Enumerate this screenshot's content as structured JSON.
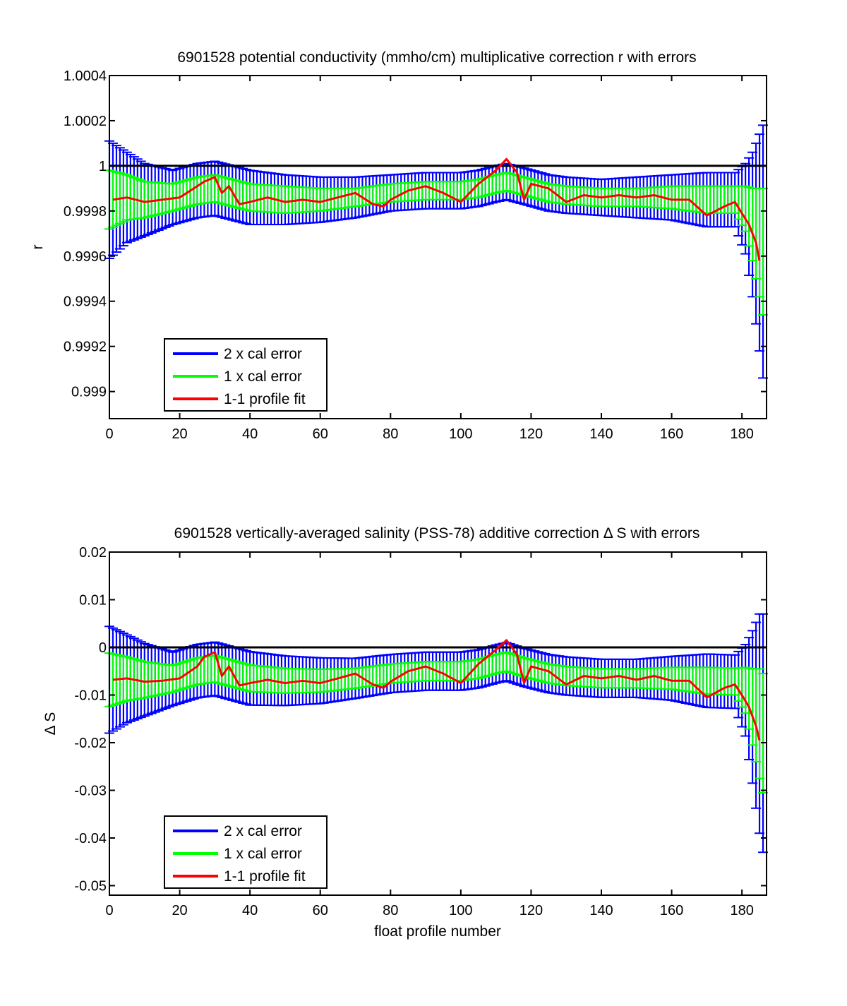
{
  "figure": {
    "xlabel": "float profile number"
  },
  "colors": {
    "two_sigma": "#0000ff",
    "one_sigma": "#00ff00",
    "fit": "#ff0000",
    "reference": "#000000"
  },
  "chart_data": [
    {
      "type": "line",
      "title": "6901528 potential conductivity (mmho/cm) multiplicative correction r with errors",
      "xlabel": "",
      "ylabel": "r",
      "xlim": [
        0,
        187
      ],
      "ylim": [
        0.99888,
        1.0004
      ],
      "xticks": [
        0,
        20,
        40,
        60,
        80,
        100,
        120,
        140,
        160,
        180
      ],
      "xtick_labels": [
        "0",
        "20",
        "40",
        "60",
        "80",
        "100",
        "120",
        "140",
        "160",
        "180"
      ],
      "yticks": [
        0.999,
        0.9992,
        0.9994,
        0.9996,
        0.9998,
        1,
        1.0002,
        1.0004
      ],
      "ytick_labels": [
        "0.999",
        "0.9992",
        "0.9994",
        "0.9996",
        "0.9998",
        "1",
        "1.0002",
        "1.0004"
      ],
      "reference_y": 1,
      "grid": false,
      "legend_position": "bottom-left",
      "legend": [
        "2 x cal error",
        "1 x cal error",
        "1-1 profile fit"
      ],
      "series": [
        {
          "name": "1-1 profile fit",
          "x": [
            1,
            5,
            10,
            15,
            20,
            25,
            27,
            30,
            32,
            34,
            37,
            40,
            45,
            50,
            55,
            60,
            65,
            70,
            75,
            78,
            80,
            85,
            90,
            95,
            100,
            105,
            110,
            113,
            116,
            118,
            120,
            125,
            130,
            135,
            140,
            145,
            150,
            155,
            160,
            165,
            170,
            175,
            178,
            180,
            182,
            184,
            185
          ],
          "values": [
            0.99985,
            0.99986,
            0.99984,
            0.99985,
            0.99986,
            0.99991,
            0.99993,
            0.99995,
            0.99988,
            0.99991,
            0.99983,
            0.99984,
            0.99986,
            0.99984,
            0.99985,
            0.99984,
            0.99986,
            0.99988,
            0.99983,
            0.99982,
            0.99985,
            0.99989,
            0.99991,
            0.99988,
            0.99984,
            0.99992,
            0.99998,
            1.00003,
            0.99997,
            0.99985,
            0.99992,
            0.9999,
            0.99984,
            0.99987,
            0.99986,
            0.99987,
            0.99986,
            0.99987,
            0.99985,
            0.99985,
            0.99978,
            0.99982,
            0.99984,
            0.99979,
            0.99974,
            0.99966,
            0.99958
          ]
        },
        {
          "name": "1 x cal error",
          "x": [
            0,
            5,
            10,
            18,
            25,
            30,
            35,
            40,
            50,
            60,
            70,
            80,
            90,
            100,
            105,
            110,
            113,
            118,
            125,
            130,
            140,
            150,
            160,
            170,
            178,
            181,
            183,
            185,
            186
          ],
          "values": [
            0.99985,
            0.99986,
            0.99985,
            0.99986,
            0.99989,
            0.9999,
            0.99988,
            0.99986,
            0.99985,
            0.99985,
            0.99986,
            0.99988,
            0.99989,
            0.99989,
            0.9999,
            0.99992,
            0.99993,
            0.99991,
            0.99988,
            0.99987,
            0.99986,
            0.99986,
            0.99986,
            0.99985,
            0.99985,
            0.99981,
            0.99974,
            0.99966,
            0.99962
          ],
          "error": [
            0.00013,
            0.0001,
            8e-05,
            6e-05,
            6e-05,
            6e-05,
            6e-05,
            6e-05,
            6e-05,
            5e-05,
            4e-05,
            4e-05,
            4e-05,
            4e-05,
            4e-05,
            4e-05,
            4e-05,
            4e-05,
            4e-05,
            4e-05,
            4e-05,
            4e-05,
            5e-05,
            6e-05,
            6e-05,
            0.0001,
            0.00016,
            0.00024,
            0.00028
          ]
        },
        {
          "name": "2 x cal error",
          "x": [
            0,
            5,
            10,
            18,
            25,
            30,
            35,
            40,
            50,
            60,
            70,
            80,
            90,
            100,
            105,
            110,
            113,
            118,
            125,
            130,
            140,
            150,
            160,
            170,
            178,
            181,
            183,
            185,
            186
          ],
          "values": [
            0.99985,
            0.99986,
            0.99985,
            0.99986,
            0.99989,
            0.9999,
            0.99988,
            0.99986,
            0.99985,
            0.99985,
            0.99986,
            0.99988,
            0.99989,
            0.99989,
            0.9999,
            0.99992,
            0.99993,
            0.99991,
            0.99988,
            0.99987,
            0.99986,
            0.99986,
            0.99986,
            0.99985,
            0.99985,
            0.99981,
            0.99974,
            0.99966,
            0.99962
          ],
          "error": [
            0.00026,
            0.0002,
            0.00016,
            0.00012,
            0.00012,
            0.00012,
            0.00012,
            0.00012,
            0.00011,
            0.0001,
            9e-05,
            8e-05,
            8e-05,
            8e-05,
            8e-05,
            8e-05,
            8e-05,
            8e-05,
            8e-05,
            8e-05,
            8e-05,
            9e-05,
            0.0001,
            0.00012,
            0.00012,
            0.0002,
            0.00032,
            0.00048,
            0.00056
          ]
        }
      ]
    },
    {
      "type": "line",
      "title": "6901528 vertically-averaged salinity (PSS-78) additive correction Δ S with errors",
      "xlabel": "float profile number",
      "ylabel": "Δ S",
      "xlim": [
        0,
        187
      ],
      "ylim": [
        -0.052,
        0.02
      ],
      "xticks": [
        0,
        20,
        40,
        60,
        80,
        100,
        120,
        140,
        160,
        180
      ],
      "xtick_labels": [
        "0",
        "20",
        "40",
        "60",
        "80",
        "100",
        "120",
        "140",
        "160",
        "180"
      ],
      "yticks": [
        -0.05,
        -0.04,
        -0.03,
        -0.02,
        -0.01,
        0,
        0.01,
        0.02
      ],
      "ytick_labels": [
        "-0.05",
        "-0.04",
        "-0.03",
        "-0.02",
        "-0.01",
        "0",
        "0.01",
        "0.02"
      ],
      "reference_y": 0,
      "grid": false,
      "legend_position": "bottom-left",
      "legend": [
        "2 x cal error",
        "1 x cal error",
        "1-1 profile fit"
      ],
      "series": [
        {
          "name": "1-1 profile fit",
          "x": [
            1,
            5,
            10,
            15,
            20,
            25,
            27,
            30,
            32,
            34,
            37,
            40,
            45,
            50,
            55,
            60,
            65,
            70,
            75,
            78,
            80,
            85,
            90,
            95,
            100,
            105,
            110,
            113,
            116,
            118,
            120,
            125,
            130,
            135,
            140,
            145,
            150,
            155,
            160,
            165,
            170,
            175,
            178,
            180,
            182,
            184,
            185
          ],
          "values": [
            -0.0068,
            -0.0065,
            -0.0072,
            -0.007,
            -0.0065,
            -0.004,
            -0.002,
            -0.001,
            -0.006,
            -0.004,
            -0.008,
            -0.0075,
            -0.0068,
            -0.0075,
            -0.007,
            -0.0075,
            -0.0065,
            -0.0055,
            -0.0078,
            -0.0085,
            -0.0072,
            -0.005,
            -0.004,
            -0.0055,
            -0.0075,
            -0.0035,
            -0.0005,
            0.0015,
            -0.0015,
            -0.0075,
            -0.004,
            -0.005,
            -0.0078,
            -0.006,
            -0.0065,
            -0.006,
            -0.0068,
            -0.006,
            -0.007,
            -0.007,
            -0.0105,
            -0.0085,
            -0.0078,
            -0.01,
            -0.0125,
            -0.0165,
            -0.0195
          ]
        },
        {
          "name": "1 x cal error",
          "x": [
            0,
            5,
            10,
            18,
            25,
            30,
            35,
            40,
            50,
            60,
            70,
            80,
            90,
            100,
            105,
            110,
            113,
            118,
            125,
            130,
            140,
            150,
            160,
            170,
            178,
            181,
            183,
            185,
            186
          ],
          "values": [
            -0.0068,
            -0.0066,
            -0.0068,
            -0.0066,
            -0.005,
            -0.0045,
            -0.0055,
            -0.0065,
            -0.007,
            -0.007,
            -0.0065,
            -0.0055,
            -0.005,
            -0.005,
            -0.0045,
            -0.0035,
            -0.003,
            -0.0042,
            -0.0055,
            -0.006,
            -0.0065,
            -0.0065,
            -0.0065,
            -0.007,
            -0.0072,
            -0.009,
            -0.0125,
            -0.016,
            -0.018
          ],
          "error": [
            0.0056,
            0.0046,
            0.0038,
            0.0028,
            0.0028,
            0.0028,
            0.0028,
            0.0028,
            0.0026,
            0.0024,
            0.0021,
            0.002,
            0.002,
            0.002,
            0.002,
            0.002,
            0.002,
            0.002,
            0.002,
            0.002,
            0.002,
            0.002,
            0.0023,
            0.0028,
            0.0028,
            0.0048,
            0.008,
            0.0115,
            0.0125
          ]
        },
        {
          "name": "2 x cal error",
          "x": [
            0,
            5,
            10,
            18,
            25,
            30,
            35,
            40,
            50,
            60,
            70,
            80,
            90,
            100,
            105,
            110,
            113,
            118,
            125,
            130,
            140,
            150,
            160,
            170,
            178,
            181,
            183,
            185,
            186
          ],
          "values": [
            -0.0068,
            -0.0066,
            -0.0068,
            -0.0066,
            -0.005,
            -0.0045,
            -0.0055,
            -0.0065,
            -0.007,
            -0.007,
            -0.0065,
            -0.0055,
            -0.005,
            -0.005,
            -0.0045,
            -0.0035,
            -0.003,
            -0.0042,
            -0.0055,
            -0.006,
            -0.0065,
            -0.0065,
            -0.0065,
            -0.007,
            -0.0072,
            -0.009,
            -0.0125,
            -0.016,
            -0.018
          ],
          "error": [
            0.0112,
            0.0092,
            0.0076,
            0.0056,
            0.0056,
            0.0056,
            0.0056,
            0.0056,
            0.0052,
            0.0048,
            0.0042,
            0.004,
            0.004,
            0.004,
            0.004,
            0.004,
            0.004,
            0.004,
            0.004,
            0.004,
            0.004,
            0.004,
            0.0046,
            0.0056,
            0.0056,
            0.0096,
            0.016,
            0.023,
            0.025
          ]
        }
      ]
    }
  ]
}
